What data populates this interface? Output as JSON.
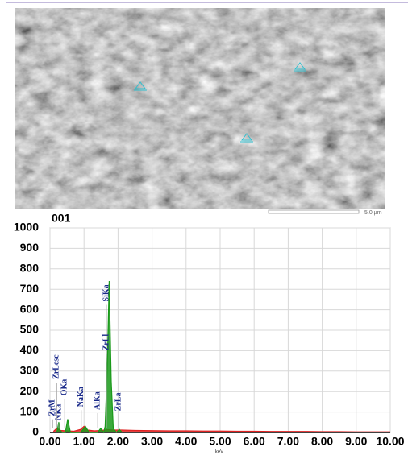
{
  "chart_data": {
    "type": "spectrum",
    "title": "001",
    "x_label": "keV",
    "scale_label": "5.0 µm",
    "xlim": [
      0,
      10
    ],
    "ylim": [
      0,
      1000
    ],
    "xticks": [
      {
        "value": 0,
        "label": "0.00"
      },
      {
        "value": 1,
        "label": "1.00"
      },
      {
        "value": 2,
        "label": "2.00"
      },
      {
        "value": 3,
        "label": "3.00"
      },
      {
        "value": 4,
        "label": "4.00"
      },
      {
        "value": 5,
        "label": "5.00"
      },
      {
        "value": 6,
        "label": "6.00"
      },
      {
        "value": 7,
        "label": "7.00"
      },
      {
        "value": 8,
        "label": "8.00"
      },
      {
        "value": 9,
        "label": "9.00"
      },
      {
        "value": 10,
        "label": "10.00"
      }
    ],
    "yticks": [
      0,
      100,
      200,
      300,
      400,
      500,
      600,
      700,
      800,
      900,
      1000
    ],
    "grid": true,
    "series": [
      {
        "color": "#e02020",
        "x": [
          0.1,
          0.2,
          0.3,
          0.5,
          0.7,
          0.9,
          1.0,
          1.1,
          1.3,
          1.5,
          1.7,
          1.9,
          2.1,
          2.5,
          3.0,
          3.5,
          4.0,
          4.5,
          5.0,
          5.5,
          6.0,
          6.5,
          7.0,
          7.5,
          8.0,
          8.5,
          9.0,
          9.5,
          10.0
        ],
        "values": [
          5,
          20,
          10,
          8,
          6,
          15,
          30,
          12,
          8,
          10,
          14,
          12,
          12,
          10,
          9,
          8,
          8,
          7,
          7,
          6,
          6,
          5,
          5,
          5,
          4,
          4,
          3,
          3,
          3
        ]
      },
      {
        "color": "#1a9a1a",
        "x": [
          0.2,
          0.26,
          0.3,
          0.36,
          0.45,
          0.52,
          0.6,
          0.9,
          1.04,
          1.15,
          1.4,
          1.49,
          1.58,
          1.62,
          1.68,
          1.74,
          1.8,
          1.86,
          1.95,
          2.04,
          2.12
        ],
        "values": [
          0,
          50,
          10,
          0,
          0,
          65,
          0,
          0,
          30,
          0,
          0,
          20,
          0,
          30,
          300,
          740,
          250,
          20,
          0,
          15,
          0
        ]
      }
    ],
    "annotations": [
      {
        "text": "ZrM",
        "x": 0.08,
        "y": 80
      },
      {
        "text": "NKa",
        "x": 0.26,
        "y": 60
      },
      {
        "text": "ZrLesc",
        "x": 0.2,
        "y": 260
      },
      {
        "text": "OKa",
        "x": 0.43,
        "y": 180
      },
      {
        "text": "NaKa",
        "x": 0.92,
        "y": 125
      },
      {
        "text": "AlKa",
        "x": 1.4,
        "y": 110
      },
      {
        "text": "SiKa",
        "x": 1.66,
        "y": 640
      },
      {
        "text": "ZrLl",
        "x": 1.66,
        "y": 400
      },
      {
        "text": "ZrLa",
        "x": 2.02,
        "y": 105
      }
    ]
  }
}
